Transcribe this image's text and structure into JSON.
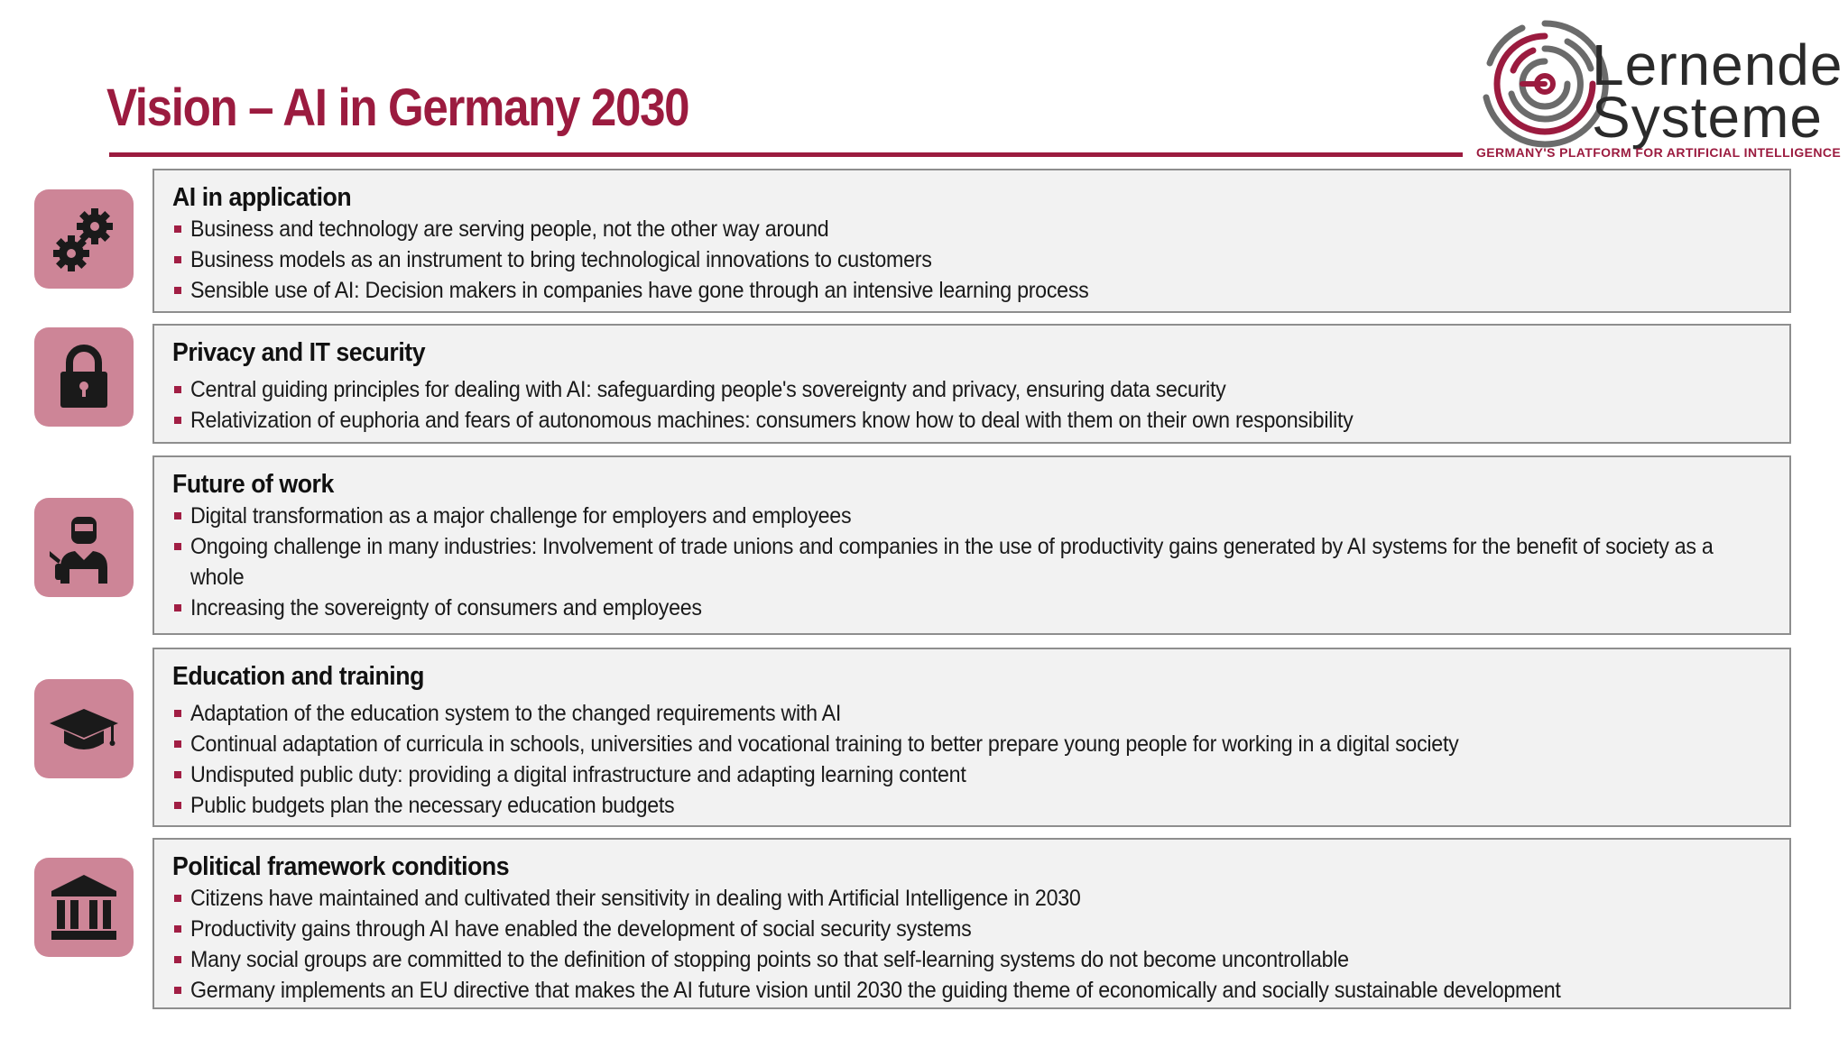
{
  "title": "Vision – AI in Germany 2030",
  "logo": {
    "word1": "Lernende",
    "word2": "Systeme",
    "tagline": "GERMANY'S PLATFORM FOR ARTIFICIAL INTELLIGENCE"
  },
  "colors": {
    "accent": "#9b1b3f",
    "icon_tile": "#cd8597",
    "box_bg": "#f2f2f2",
    "box_border": "#8e8e8e"
  },
  "sections": [
    {
      "icon": "gears-icon",
      "heading": "AI in application",
      "bullets": [
        "Business and technology are serving people, not the other way around",
        "Business models as an instrument to bring technological innovations to customers",
        "Sensible use of AI: Decision makers in companies have gone through an intensive learning process"
      ]
    },
    {
      "icon": "padlock-icon",
      "heading": "Privacy and IT security",
      "bullets": [
        "Central guiding principles for dealing with AI: safeguarding people's sovereignty and privacy, ensuring data security",
        "Relativization of euphoria and fears of autonomous machines: consumers know how to deal with them on their own responsibility"
      ]
    },
    {
      "icon": "welder-icon",
      "heading": "Future of work",
      "bullets": [
        "Digital transformation as a major challenge for employers and employees",
        "Ongoing challenge in many industries: Involvement of trade unions and companies in the use of productivity gains generated by AI systems for the benefit of society as a whole",
        "Increasing the sovereignty of consumers and employees"
      ]
    },
    {
      "icon": "graduation-cap-icon",
      "heading": "Education and training",
      "bullets": [
        "Adaptation of the education system to the changed requirements with AI",
        "Continual adaptation of curricula in schools, universities and vocational training to better prepare young people for working in a digital society",
        "Undisputed public duty: providing a digital infrastructure and adapting learning content",
        "Public budgets plan the necessary education budgets"
      ]
    },
    {
      "icon": "government-building-icon",
      "heading": "Political framework conditions",
      "bullets": [
        "Citizens have maintained and cultivated their sensitivity in dealing with Artificial Intelligence in 2030",
        "Productivity gains through AI have enabled the development of social security systems",
        "Many social groups are committed to the definition of stopping points so that self-learning systems do not become uncontrollable",
        "Germany implements an EU directive that makes the AI future vision until 2030 the guiding theme of economically and socially sustainable development"
      ]
    }
  ]
}
